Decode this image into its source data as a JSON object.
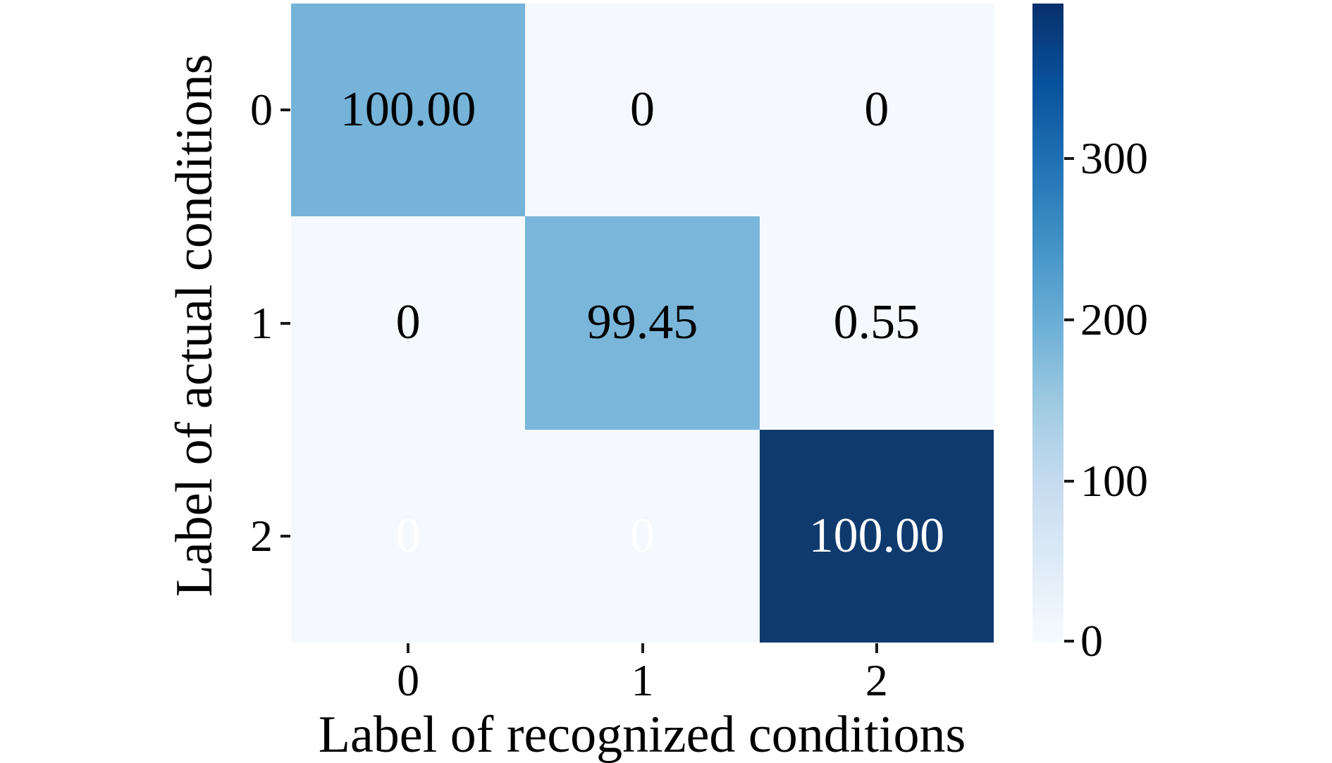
{
  "figure": {
    "background": "#ffffff",
    "text_color": "#000000"
  },
  "chart_data": {
    "type": "heatmap",
    "title": "",
    "xlabel": "Label of recognized conditions",
    "ylabel": "Label of actual conditions",
    "x_tick_labels": [
      "0",
      "1",
      "2"
    ],
    "y_tick_labels": [
      "0",
      "1",
      "2"
    ],
    "values": [
      [
        100.0,
        0,
        0
      ],
      [
        0,
        99.45,
        0.55
      ],
      [
        0,
        0,
        100.0
      ]
    ],
    "cell_labels": [
      [
        "100.00",
        "0",
        "0"
      ],
      [
        "0",
        "99.45",
        "0.55"
      ],
      [
        "0",
        "0",
        "100.00"
      ]
    ],
    "cell_colors": [
      [
        "#75b3d8",
        "#f5f9fd",
        "#f5f9fd"
      ],
      [
        "#f5f9fd",
        "#7ab6da",
        "#f5f9fd"
      ],
      [
        "#f5f9fd",
        "#f5f9fd",
        "#0f3a6e"
      ]
    ],
    "cell_text_colors": [
      [
        "#000000",
        "#000000",
        "#000000"
      ],
      [
        "#000000",
        "#000000",
        "#000000"
      ],
      [
        "#ffffff",
        "#ffffff",
        "#ffffff"
      ]
    ],
    "colormap": "Blues",
    "grid": false,
    "colorbar": {
      "position": "right",
      "tick_labels": [
        "300",
        "200",
        "100",
        "0"
      ],
      "tick_values": [
        300,
        200,
        100,
        0
      ],
      "vmin": 0,
      "vmax": 396,
      "gradient_stops": [
        "#f7fbff",
        "#deebf7",
        "#c6dbef",
        "#9ecae1",
        "#6baed6",
        "#4292c6",
        "#2171b5",
        "#08519c",
        "#08306b"
      ]
    }
  }
}
